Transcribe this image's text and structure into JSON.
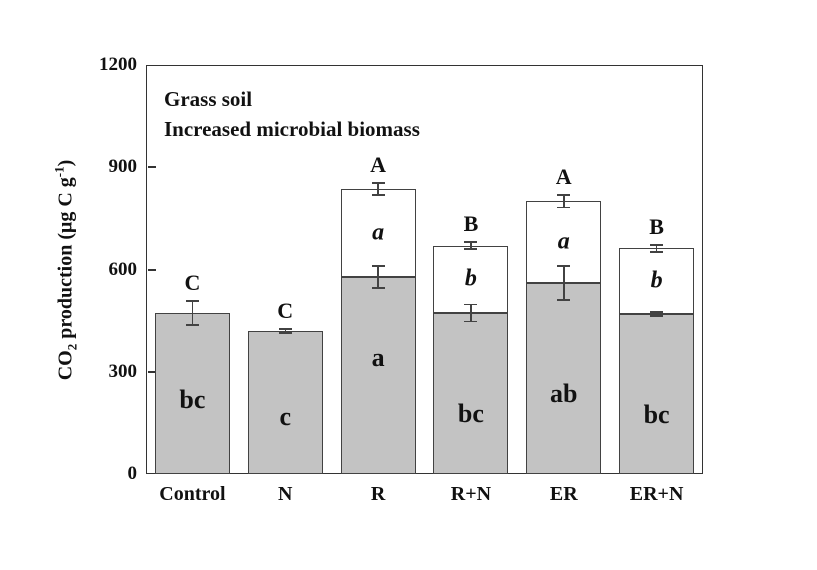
{
  "chart_data": {
    "type": "bar",
    "stacked": true,
    "title_lines": [
      "Grass soil",
      "Increased microbial biomass"
    ],
    "categories": [
      "Control",
      "N",
      "R",
      "R+N",
      "ER",
      "ER+N"
    ],
    "series": [
      {
        "name": "shaded-lower-segment",
        "fill": "#c3c3c3",
        "values": [
          472,
          420,
          578,
          472,
          560,
          470
        ],
        "errors": [
          35,
          6,
          32,
          25,
          50,
          6
        ],
        "inbar_labels": [
          "bc",
          "c",
          "a",
          "bc",
          "ab",
          "bc"
        ]
      },
      {
        "name": "open-upper-segment",
        "fill": "#ffffff",
        "values": [
          0,
          0,
          258,
          198,
          240,
          192
        ],
        "errors": [
          0,
          0,
          18,
          10,
          18,
          10
        ],
        "inbar_labels": [
          "",
          "",
          "a",
          "b",
          "a",
          "b"
        ]
      }
    ],
    "totals": [
      472,
      420,
      836,
      670,
      800,
      662
    ],
    "group_letters": [
      "C",
      "C",
      "A",
      "B",
      "A",
      "B"
    ],
    "ylabel": "CO2 production (μg C g-1)",
    "ylabel_parts": {
      "pre": "CO",
      "sub": "2",
      "mid": " production (μg C g",
      "sup": "-1",
      "post": ")"
    },
    "xlabel": "",
    "yticks": [
      0,
      300,
      600,
      900,
      1200
    ],
    "ylim": [
      0,
      1200
    ],
    "grid": false,
    "legend": "none",
    "edge_color": "#424242",
    "axis_color": "#333333",
    "bar_fill_color": "#c3c3c3"
  }
}
